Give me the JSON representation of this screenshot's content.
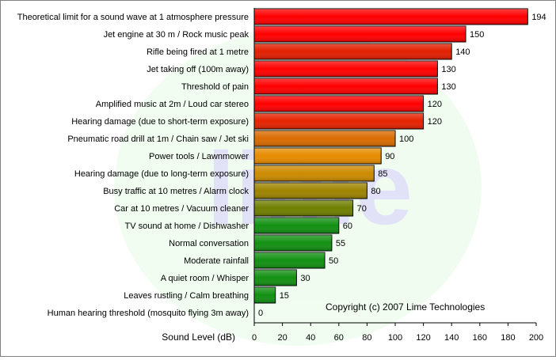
{
  "chart_data": {
    "type": "bar",
    "orientation": "horizontal",
    "categories": [
      "Theoretical limit for a sound wave at 1 atmosphere pressure",
      "Jet engine at 30 m / Rock music peak",
      "Rifle being fired at 1 metre",
      "Jet taking off (100m away)",
      "Threshold of pain",
      "Amplified music at 2m / Loud car stereo",
      "Hearing damage (due to short-term exposure)",
      "Pneumatic road drill at 1m / Chain saw / Jet ski",
      "Power tools / Lawnmower",
      "Hearing damage (due to long-term exposure)",
      "Busy traffic at 10 metres / Alarm clock",
      "Car at 10 metres / Vacuum cleaner",
      "TV sound at home / Dishwasher",
      "Normal conversation",
      "Moderate rainfall",
      "A quiet room / Whisper",
      "Leaves rustling / Calm breathing",
      "Human hearing threshold (mosquito flying 3m away)"
    ],
    "values": [
      194,
      150,
      140,
      130,
      130,
      120,
      120,
      100,
      90,
      85,
      80,
      70,
      60,
      55,
      50,
      30,
      15,
      0
    ],
    "bar_colors": [
      "#ff0000",
      "#ff0000",
      "#e21e00",
      "#ff0000",
      "#ff0000",
      "#ff0000",
      "#e52200",
      "#d86b00",
      "#e68b00",
      "#cc8a00",
      "#9e8300",
      "#6f7f00",
      "#129012",
      "#129012",
      "#129012",
      "#129012",
      "#129012",
      "#129012"
    ],
    "xlabel": "Sound Level (dB)",
    "xlim": [
      0,
      200
    ],
    "xticks": [
      "0",
      "20",
      "40",
      "60",
      "80",
      "100",
      "120",
      "140",
      "160",
      "180",
      "200"
    ],
    "grid": false,
    "legend": "none",
    "annotation": "Copyright (c) 2007 Lime Technologies",
    "watermark_text": "lime"
  }
}
